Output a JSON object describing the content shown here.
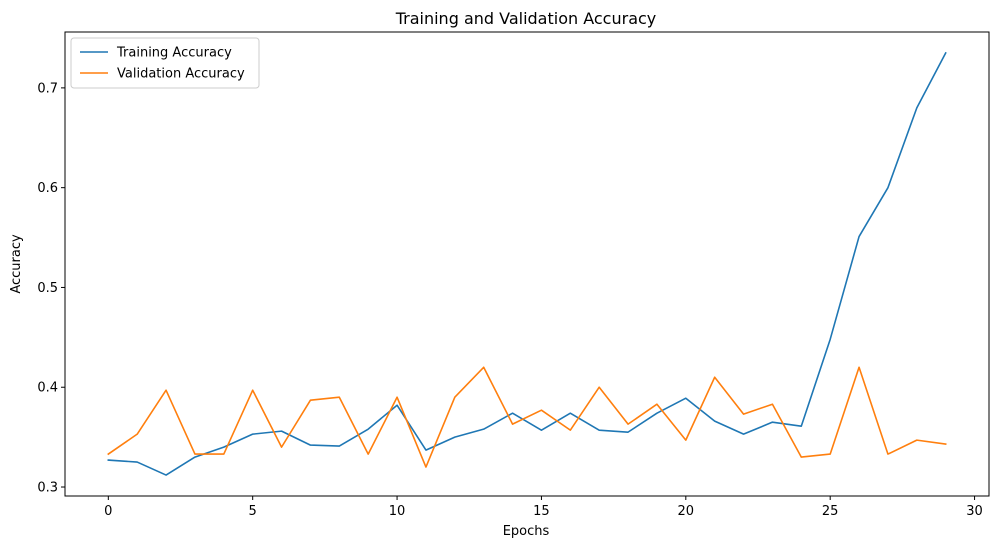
{
  "chart_data": {
    "type": "line",
    "title": "Training and Validation Accuracy",
    "xlabel": "Epochs",
    "ylabel": "Accuracy",
    "xlim": [
      -1.5,
      30.5
    ],
    "ylim": [
      0.291,
      0.756
    ],
    "xticks": [
      0,
      5,
      10,
      15,
      20,
      25,
      30
    ],
    "yticks": [
      0.3,
      0.4,
      0.5,
      0.6,
      0.7
    ],
    "ytick_labels": [
      "0.3",
      "0.4",
      "0.5",
      "0.6",
      "0.7"
    ],
    "grid": false,
    "legend": "top-left",
    "x": [
      0,
      1,
      2,
      3,
      4,
      5,
      6,
      7,
      8,
      9,
      10,
      11,
      12,
      13,
      14,
      15,
      16,
      17,
      18,
      19,
      20,
      21,
      22,
      23,
      24,
      25,
      26,
      27,
      28,
      29
    ],
    "series": [
      {
        "name": "Training Accuracy",
        "color": "#1f77b4",
        "values": [
          0.327,
          0.325,
          0.312,
          0.33,
          0.34,
          0.353,
          0.356,
          0.342,
          0.341,
          0.358,
          0.382,
          0.337,
          0.35,
          0.358,
          0.374,
          0.357,
          0.374,
          0.357,
          0.355,
          0.374,
          0.389,
          0.366,
          0.353,
          0.365,
          0.361,
          0.448,
          0.551,
          0.6,
          0.68,
          0.735
        ]
      },
      {
        "name": "Validation Accuracy",
        "color": "#ff7f0e",
        "values": [
          0.333,
          0.353,
          0.397,
          0.333,
          0.333,
          0.397,
          0.34,
          0.387,
          0.39,
          0.333,
          0.39,
          0.32,
          0.39,
          0.42,
          0.363,
          0.377,
          0.357,
          0.4,
          0.363,
          0.383,
          0.347,
          0.41,
          0.373,
          0.383,
          0.33,
          0.333,
          0.42,
          0.333,
          0.347,
          0.343
        ]
      }
    ]
  }
}
